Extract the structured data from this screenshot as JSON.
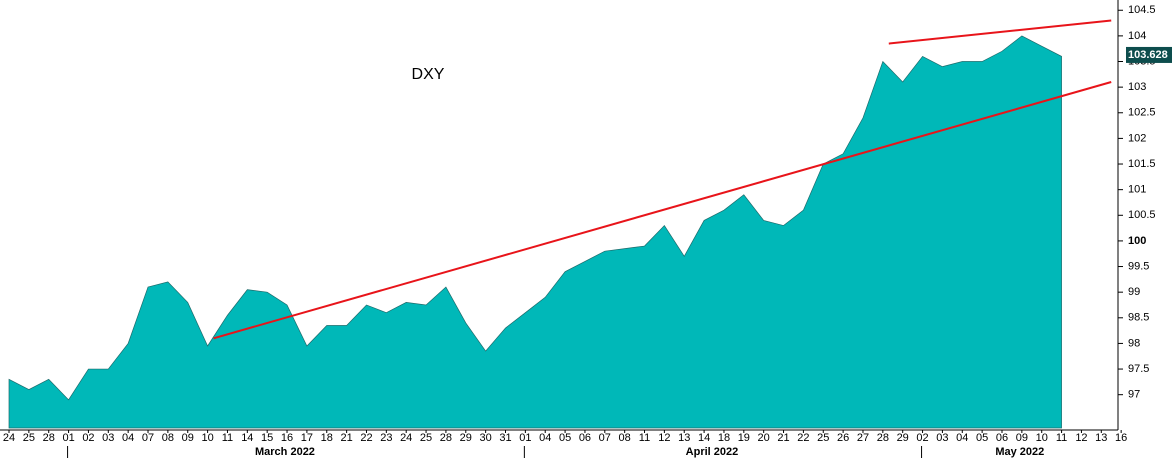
{
  "chart_data": {
    "type": "area",
    "title": "DXY",
    "categories": [
      "24",
      "25",
      "28",
      "01",
      "02",
      "03",
      "04",
      "07",
      "08",
      "09",
      "10",
      "11",
      "14",
      "15",
      "16",
      "17",
      "18",
      "21",
      "22",
      "23",
      "24",
      "25",
      "28",
      "29",
      "30",
      "31",
      "01",
      "04",
      "05",
      "06",
      "07",
      "08",
      "11",
      "12",
      "13",
      "14",
      "18",
      "19",
      "20",
      "21",
      "22",
      "25",
      "26",
      "27",
      "28",
      "29",
      "02",
      "03",
      "04",
      "05",
      "06",
      "09",
      "10",
      "11",
      "12",
      "13",
      "16"
    ],
    "months": [
      "March 2022",
      "April 2022",
      "May 2022"
    ],
    "series": [
      {
        "name": "DXY",
        "color": "#00b8b8",
        "values": [
          97.3,
          97.1,
          97.3,
          96.9,
          97.5,
          97.5,
          98.0,
          99.1,
          99.2,
          98.8,
          97.95,
          98.55,
          99.05,
          99.0,
          98.75,
          97.95,
          98.35,
          98.35,
          98.75,
          98.6,
          98.8,
          98.75,
          99.1,
          98.4,
          97.85,
          98.3,
          98.6,
          98.9,
          99.4,
          99.6,
          99.8,
          99.85,
          99.9,
          100.3,
          99.7,
          100.4,
          100.6,
          100.9,
          100.4,
          100.3,
          100.6,
          101.5,
          101.7,
          102.4,
          103.5,
          103.1,
          103.6,
          103.4,
          103.5,
          103.5,
          103.7,
          104.0,
          103.8,
          103.6,
          null,
          null,
          null
        ]
      }
    ],
    "last_price": 103.628,
    "trendlines": [
      {
        "color": "#e8141a",
        "x": [
          10.3,
          55.5
        ],
        "y": [
          98.1,
          103.1
        ]
      },
      {
        "color": "#e8141a",
        "x": [
          44.3,
          55.5
        ],
        "y": [
          103.85,
          104.3
        ]
      }
    ],
    "ylim": [
      96.35,
      104.7
    ],
    "yticks": [
      97,
      97.5,
      98,
      98.5,
      99,
      99.5,
      100,
      100.5,
      101,
      101.5,
      102,
      102.5,
      103,
      103.5,
      104,
      104.5
    ]
  }
}
